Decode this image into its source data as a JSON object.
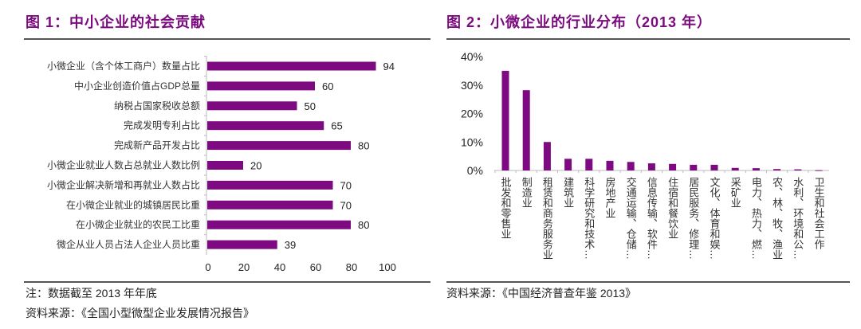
{
  "colors": {
    "bar": "#7e0a82",
    "title": "#7a0a7e",
    "axis": "#bbbbbb"
  },
  "chart_data": [
    {
      "type": "bar",
      "orientation": "horizontal",
      "title": "图 1：中小企业的社会贡献",
      "categories": [
        "小微企业（含个体工商户）数量占比",
        "中小企业创造价值占GDP总量",
        "纳税占国家税收总额",
        "完成发明专利占比",
        "完成新产品开发占比",
        "小微企业就业人数占总就业人数比例",
        "小微企业解决新增和再就业人数占比",
        "在小微企业就业的城镇居民比重",
        "在小微企业就业的农民工比重",
        "微企从业人员占法人企业人员比重"
      ],
      "values": [
        94,
        60,
        50,
        65,
        80,
        20,
        70,
        70,
        80,
        39
      ],
      "xlim": [
        0,
        100
      ],
      "xticks": [
        "0",
        "20",
        "40",
        "60",
        "80",
        "100"
      ],
      "data_labels": true,
      "grid": false
    },
    {
      "type": "bar",
      "orientation": "vertical",
      "title": "图 2：小微企业的行业分布（2013 年）",
      "categories": [
        "批发和零售业",
        "制造业",
        "租赁和商务服务业",
        "建筑业",
        "科学研究和技术…",
        "房地产业",
        "交通运输、仓储…",
        "信息传输、软件…",
        "住宿和餐饮业",
        "居民服务、修理…",
        "文化、体育和娱…",
        "采矿业",
        "电力、热力、燃…",
        "农、林、牧、渔业",
        "水利、环境和公…",
        "卫生和社会工作"
      ],
      "values": [
        35,
        28.2,
        10,
        4.1,
        4.1,
        3.4,
        3.0,
        2.5,
        2.3,
        2.0,
        2.0,
        0.9,
        0.8,
        0.5,
        0.4,
        0.1
      ],
      "unit": "%",
      "ylim": [
        0,
        40
      ],
      "yticks": [
        "0%",
        "10%",
        "20%",
        "30%",
        "40%"
      ],
      "grid": false
    }
  ],
  "footer": {
    "left_note": "注：数据截至 2013 年年底",
    "left_source": "资料来源：《全国小型微型企业发展情况报告》",
    "right_source": "资料来源：《中国经济普查年鉴 2013》"
  }
}
